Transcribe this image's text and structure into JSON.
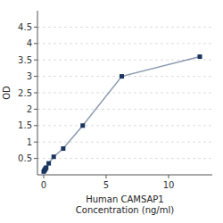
{
  "chart_data": {
    "type": "line",
    "xlabel": "Human CAMSAP1\nConcentration (ng/ml)",
    "ylabel": "OD",
    "x": [
      0.0,
      0.05,
      0.1,
      0.15,
      0.2,
      0.4,
      0.8,
      1.563,
      3.125,
      6.25,
      12.5
    ],
    "values": [
      0.1,
      0.13,
      0.16,
      0.19,
      0.22,
      0.35,
      0.55,
      0.8,
      1.5,
      3.0,
      3.6
    ],
    "color": "#1a3560",
    "marker": "square",
    "xlim": [
      -0.5,
      13.5
    ],
    "ylim": [
      0,
      5.0
    ],
    "xticks": [
      0,
      5,
      10
    ],
    "yticks": [
      0.5,
      1.0,
      1.5,
      2.0,
      2.5,
      3.0,
      3.5,
      4.0,
      4.5
    ],
    "grid": true
  }
}
